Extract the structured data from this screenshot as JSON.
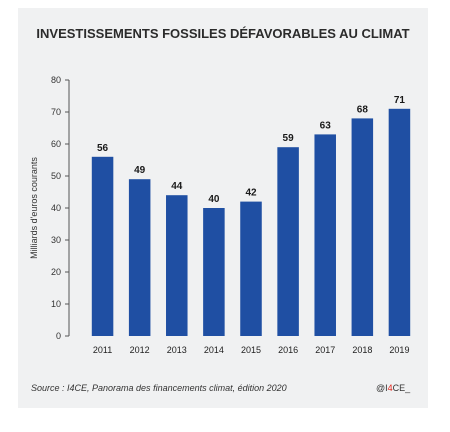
{
  "chart_data": {
    "type": "bar",
    "title": "INVESTISSEMENTS FOSSILES DÉFAVORABLES AU CLIMAT",
    "ylabel": "Milliards d'euros courants",
    "xlabel": "",
    "categories": [
      "2011",
      "2012",
      "2013",
      "2014",
      "2015",
      "2016",
      "2017",
      "2018",
      "2019"
    ],
    "values": [
      56,
      49,
      44,
      40,
      42,
      59,
      63,
      68,
      71
    ],
    "ylim": [
      0,
      80
    ],
    "yticks": [
      "0",
      "10",
      "20",
      "30",
      "40",
      "50",
      "60",
      "70",
      "80"
    ],
    "grid": false,
    "data_labels": true,
    "bar_color": "#1f4fa3",
    "axis_color": "#555555",
    "source": "Source : I4CE, Panorama des financements climat, édition 2020",
    "brand_prefix": "@I",
    "brand_accent": "4",
    "brand_suffix": "CE_",
    "brand_accent_color": "#e2231a"
  }
}
